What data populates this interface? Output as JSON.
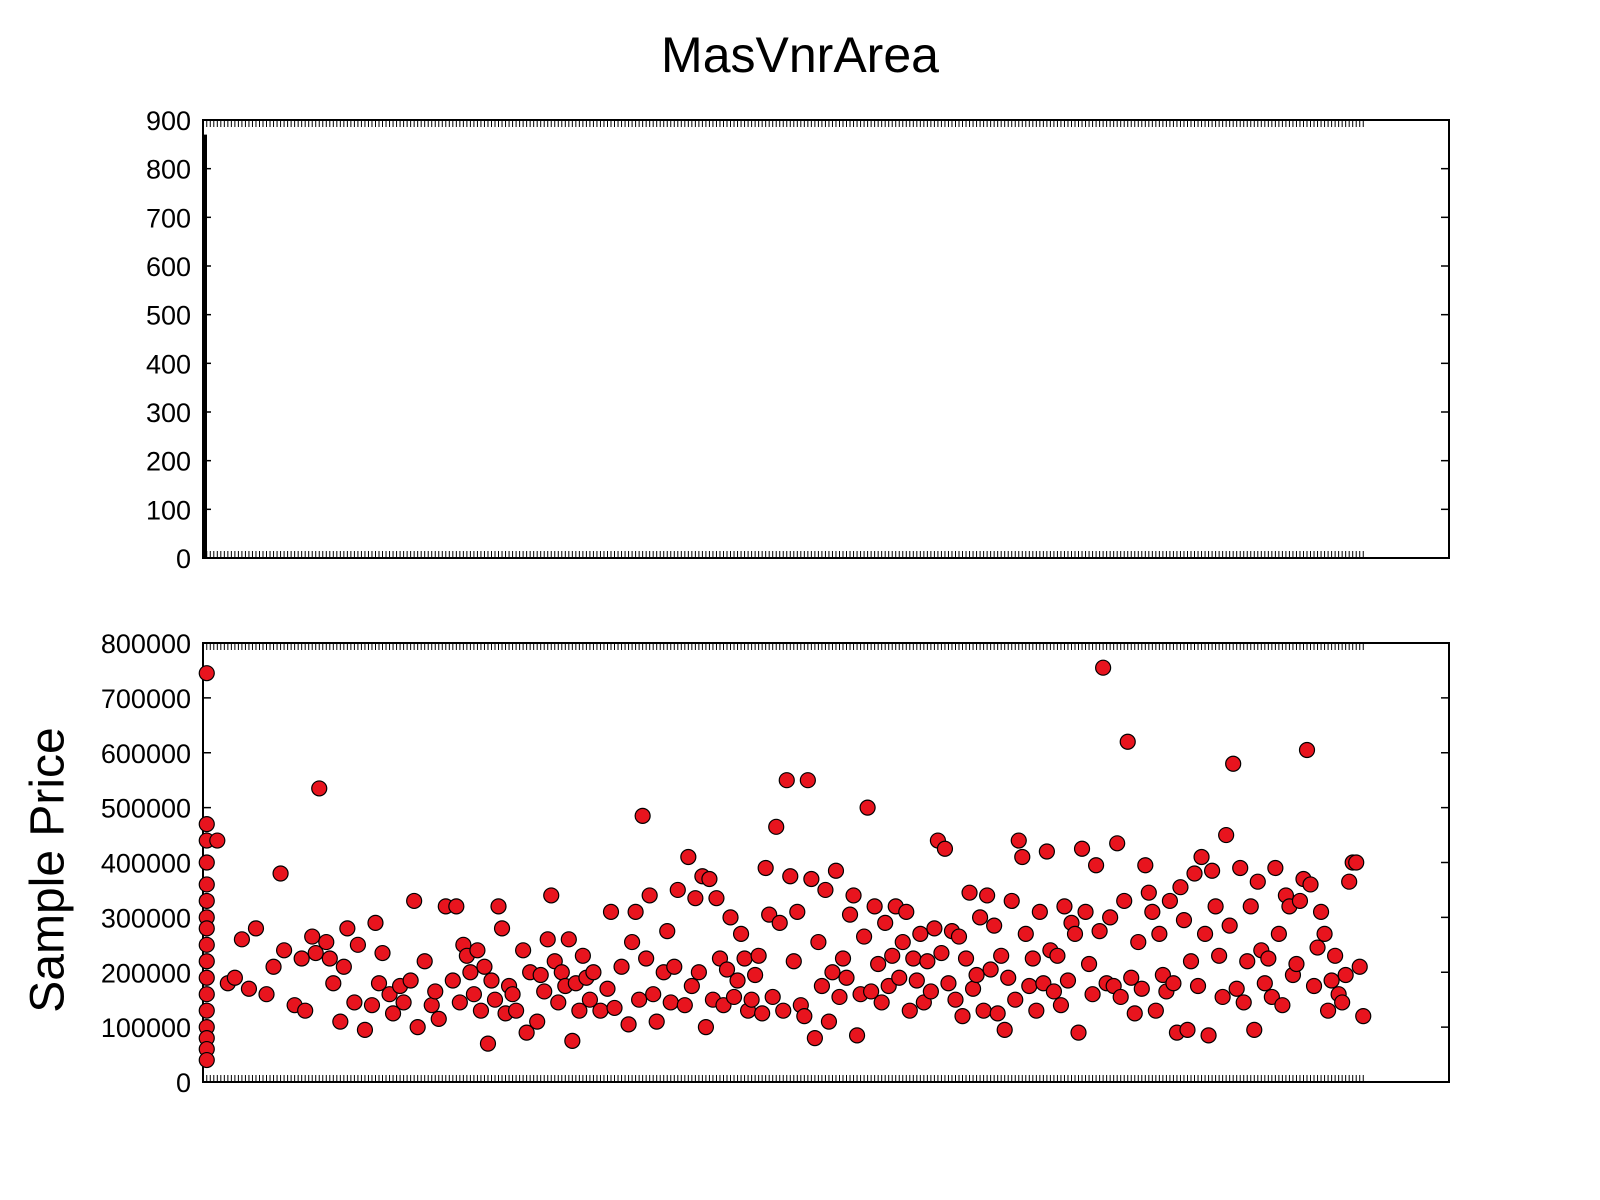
{
  "chart_data": [
    {
      "type": "bar",
      "title": "MasVnrArea",
      "xlabel": "",
      "ylabel": "",
      "ylim": [
        0,
        900
      ],
      "yticks": [
        "0",
        "100",
        "200",
        "300",
        "400",
        "500",
        "600",
        "700",
        "800",
        "900"
      ],
      "bars": [
        {
          "category": "0",
          "value": 870
        }
      ],
      "categories_note": "",
      "grid": false,
      "axes_color": "#000000"
    },
    {
      "type": "scatter",
      "xlabel": "",
      "ylabel": "Sample Price",
      "ylim": [
        0,
        800000
      ],
      "yticks": [
        "0",
        "100000",
        "200000",
        "300000",
        "400000",
        "500000",
        "600000",
        "700000",
        "800000"
      ],
      "marker_color": "#e8141e",
      "marker_edge": "#000000",
      "grid": false,
      "points": [
        [
          0,
          745000
        ],
        [
          0,
          470000
        ],
        [
          0,
          440000
        ],
        [
          0,
          400000
        ],
        [
          0,
          360000
        ],
        [
          0,
          330000
        ],
        [
          0,
          300000
        ],
        [
          0,
          280000
        ],
        [
          0,
          250000
        ],
        [
          0,
          220000
        ],
        [
          0,
          190000
        ],
        [
          0,
          160000
        ],
        [
          0,
          130000
        ],
        [
          0,
          100000
        ],
        [
          0,
          80000
        ],
        [
          0,
          60000
        ],
        [
          0,
          40000
        ],
        [
          3,
          440000
        ],
        [
          6,
          180000
        ],
        [
          8,
          190000
        ],
        [
          10,
          260000
        ],
        [
          12,
          170000
        ],
        [
          14,
          280000
        ],
        [
          17,
          160000
        ],
        [
          19,
          210000
        ],
        [
          21,
          380000
        ],
        [
          22,
          240000
        ],
        [
          25,
          140000
        ],
        [
          27,
          225000
        ],
        [
          28,
          130000
        ],
        [
          30,
          265000
        ],
        [
          31,
          235000
        ],
        [
          32,
          535000
        ],
        [
          34,
          255000
        ],
        [
          35,
          225000
        ],
        [
          36,
          180000
        ],
        [
          38,
          110000
        ],
        [
          39,
          210000
        ],
        [
          40,
          280000
        ],
        [
          42,
          145000
        ],
        [
          43,
          250000
        ],
        [
          45,
          95000
        ],
        [
          47,
          140000
        ],
        [
          48,
          290000
        ],
        [
          49,
          180000
        ],
        [
          50,
          235000
        ],
        [
          52,
          160000
        ],
        [
          53,
          125000
        ],
        [
          55,
          175000
        ],
        [
          56,
          145000
        ],
        [
          58,
          185000
        ],
        [
          59,
          330000
        ],
        [
          60,
          100000
        ],
        [
          62,
          220000
        ],
        [
          64,
          140000
        ],
        [
          65,
          165000
        ],
        [
          66,
          115000
        ],
        [
          68,
          320000
        ],
        [
          70,
          185000
        ],
        [
          71,
          320000
        ],
        [
          72,
          145000
        ],
        [
          73,
          250000
        ],
        [
          74,
          230000
        ],
        [
          75,
          200000
        ],
        [
          76,
          160000
        ],
        [
          77,
          240000
        ],
        [
          78,
          130000
        ],
        [
          79,
          210000
        ],
        [
          80,
          70000
        ],
        [
          81,
          185000
        ],
        [
          82,
          150000
        ],
        [
          83,
          320000
        ],
        [
          84,
          280000
        ],
        [
          85,
          125000
        ],
        [
          86,
          175000
        ],
        [
          87,
          160000
        ],
        [
          88,
          130000
        ],
        [
          90,
          240000
        ],
        [
          91,
          90000
        ],
        [
          92,
          200000
        ],
        [
          94,
          110000
        ],
        [
          95,
          195000
        ],
        [
          96,
          165000
        ],
        [
          97,
          260000
        ],
        [
          98,
          340000
        ],
        [
          99,
          220000
        ],
        [
          100,
          145000
        ],
        [
          101,
          200000
        ],
        [
          102,
          175000
        ],
        [
          103,
          260000
        ],
        [
          104,
          75000
        ],
        [
          105,
          180000
        ],
        [
          106,
          130000
        ],
        [
          107,
          230000
        ],
        [
          108,
          190000
        ],
        [
          109,
          150000
        ],
        [
          110,
          200000
        ],
        [
          112,
          130000
        ],
        [
          114,
          170000
        ],
        [
          115,
          310000
        ],
        [
          116,
          135000
        ],
        [
          118,
          210000
        ],
        [
          120,
          105000
        ],
        [
          121,
          255000
        ],
        [
          122,
          310000
        ],
        [
          123,
          150000
        ],
        [
          124,
          485000
        ],
        [
          125,
          225000
        ],
        [
          126,
          340000
        ],
        [
          127,
          160000
        ],
        [
          128,
          110000
        ],
        [
          130,
          200000
        ],
        [
          131,
          275000
        ],
        [
          132,
          145000
        ],
        [
          133,
          210000
        ],
        [
          134,
          350000
        ],
        [
          136,
          140000
        ],
        [
          137,
          410000
        ],
        [
          138,
          175000
        ],
        [
          139,
          335000
        ],
        [
          140,
          200000
        ],
        [
          141,
          375000
        ],
        [
          142,
          100000
        ],
        [
          143,
          370000
        ],
        [
          144,
          150000
        ],
        [
          145,
          335000
        ],
        [
          146,
          225000
        ],
        [
          147,
          140000
        ],
        [
          148,
          205000
        ],
        [
          149,
          300000
        ],
        [
          150,
          155000
        ],
        [
          151,
          185000
        ],
        [
          152,
          270000
        ],
        [
          153,
          225000
        ],
        [
          154,
          130000
        ],
        [
          155,
          150000
        ],
        [
          156,
          195000
        ],
        [
          157,
          230000
        ],
        [
          158,
          125000
        ],
        [
          159,
          390000
        ],
        [
          160,
          305000
        ],
        [
          161,
          155000
        ],
        [
          162,
          465000
        ],
        [
          163,
          290000
        ],
        [
          164,
          130000
        ],
        [
          165,
          550000
        ],
        [
          166,
          375000
        ],
        [
          167,
          220000
        ],
        [
          168,
          310000
        ],
        [
          169,
          140000
        ],
        [
          170,
          120000
        ],
        [
          171,
          550000
        ],
        [
          172,
          370000
        ],
        [
          173,
          80000
        ],
        [
          174,
          255000
        ],
        [
          175,
          175000
        ],
        [
          176,
          350000
        ],
        [
          177,
          110000
        ],
        [
          178,
          200000
        ],
        [
          179,
          385000
        ],
        [
          180,
          155000
        ],
        [
          181,
          225000
        ],
        [
          182,
          190000
        ],
        [
          183,
          305000
        ],
        [
          184,
          340000
        ],
        [
          185,
          85000
        ],
        [
          186,
          160000
        ],
        [
          187,
          265000
        ],
        [
          188,
          500000
        ],
        [
          189,
          165000
        ],
        [
          190,
          320000
        ],
        [
          191,
          215000
        ],
        [
          192,
          145000
        ],
        [
          193,
          290000
        ],
        [
          194,
          175000
        ],
        [
          195,
          230000
        ],
        [
          196,
          320000
        ],
        [
          197,
          190000
        ],
        [
          198,
          255000
        ],
        [
          199,
          310000
        ],
        [
          200,
          130000
        ],
        [
          201,
          225000
        ],
        [
          202,
          185000
        ],
        [
          203,
          270000
        ],
        [
          204,
          145000
        ],
        [
          205,
          220000
        ],
        [
          206,
          165000
        ],
        [
          207,
          280000
        ],
        [
          208,
          440000
        ],
        [
          209,
          235000
        ],
        [
          210,
          425000
        ],
        [
          211,
          180000
        ],
        [
          212,
          275000
        ],
        [
          213,
          150000
        ],
        [
          214,
          265000
        ],
        [
          215,
          120000
        ],
        [
          216,
          225000
        ],
        [
          217,
          345000
        ],
        [
          218,
          170000
        ],
        [
          219,
          195000
        ],
        [
          220,
          300000
        ],
        [
          221,
          130000
        ],
        [
          222,
          340000
        ],
        [
          223,
          205000
        ],
        [
          224,
          285000
        ],
        [
          225,
          125000
        ],
        [
          226,
          230000
        ],
        [
          227,
          95000
        ],
        [
          228,
          190000
        ],
        [
          229,
          330000
        ],
        [
          230,
          150000
        ],
        [
          231,
          440000
        ],
        [
          232,
          410000
        ],
        [
          233,
          270000
        ],
        [
          234,
          175000
        ],
        [
          235,
          225000
        ],
        [
          236,
          130000
        ],
        [
          237,
          310000
        ],
        [
          238,
          180000
        ],
        [
          239,
          420000
        ],
        [
          240,
          240000
        ],
        [
          241,
          165000
        ],
        [
          242,
          230000
        ],
        [
          243,
          140000
        ],
        [
          244,
          320000
        ],
        [
          245,
          185000
        ],
        [
          246,
          290000
        ],
        [
          247,
          270000
        ],
        [
          248,
          90000
        ],
        [
          249,
          425000
        ],
        [
          250,
          310000
        ],
        [
          251,
          215000
        ],
        [
          252,
          160000
        ],
        [
          253,
          395000
        ],
        [
          254,
          275000
        ],
        [
          255,
          755000
        ],
        [
          256,
          180000
        ],
        [
          257,
          300000
        ],
        [
          258,
          175000
        ],
        [
          259,
          435000
        ],
        [
          260,
          155000
        ],
        [
          261,
          330000
        ],
        [
          262,
          620000
        ],
        [
          263,
          190000
        ],
        [
          264,
          125000
        ],
        [
          265,
          255000
        ],
        [
          266,
          170000
        ],
        [
          267,
          395000
        ],
        [
          268,
          345000
        ],
        [
          269,
          310000
        ],
        [
          270,
          130000
        ],
        [
          271,
          270000
        ],
        [
          272,
          195000
        ],
        [
          273,
          165000
        ],
        [
          274,
          330000
        ],
        [
          275,
          180000
        ],
        [
          276,
          90000
        ],
        [
          277,
          355000
        ],
        [
          278,
          295000
        ],
        [
          279,
          95000
        ],
        [
          280,
          220000
        ],
        [
          281,
          380000
        ],
        [
          282,
          175000
        ],
        [
          283,
          410000
        ],
        [
          284,
          270000
        ],
        [
          285,
          85000
        ],
        [
          286,
          385000
        ],
        [
          287,
          320000
        ],
        [
          288,
          230000
        ],
        [
          289,
          155000
        ],
        [
          290,
          450000
        ],
        [
          291,
          285000
        ],
        [
          292,
          580000
        ],
        [
          293,
          170000
        ],
        [
          294,
          390000
        ],
        [
          295,
          145000
        ],
        [
          296,
          220000
        ],
        [
          297,
          320000
        ],
        [
          298,
          95000
        ],
        [
          299,
          365000
        ],
        [
          300,
          240000
        ],
        [
          301,
          180000
        ],
        [
          302,
          225000
        ],
        [
          303,
          155000
        ],
        [
          304,
          390000
        ],
        [
          305,
          270000
        ],
        [
          306,
          140000
        ],
        [
          307,
          340000
        ],
        [
          308,
          320000
        ],
        [
          309,
          195000
        ],
        [
          310,
          215000
        ],
        [
          311,
          330000
        ],
        [
          312,
          370000
        ],
        [
          313,
          605000
        ],
        [
          314,
          360000
        ],
        [
          315,
          175000
        ],
        [
          316,
          245000
        ],
        [
          317,
          310000
        ],
        [
          318,
          270000
        ],
        [
          319,
          130000
        ],
        [
          320,
          185000
        ],
        [
          321,
          230000
        ],
        [
          322,
          160000
        ],
        [
          323,
          145000
        ],
        [
          324,
          195000
        ],
        [
          325,
          365000
        ],
        [
          326,
          400000
        ],
        [
          327,
          400000
        ],
        [
          328,
          210000
        ],
        [
          329,
          120000
        ]
      ]
    }
  ]
}
